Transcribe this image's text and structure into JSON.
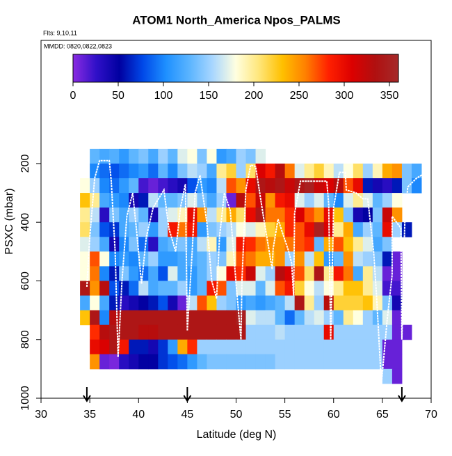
{
  "chart_data": {
    "type": "heatmap",
    "title": "ATOM1 North_America Npos_PALMS",
    "subtitle": "Flts: 9,10,11",
    "annotation": "MMDD: 0820,0822,0823",
    "xlabel": "Latitude (deg N)",
    "ylabel": "PSXC (mbar)",
    "xlim": [
      30,
      70
    ],
    "xticks": [
      30,
      35,
      40,
      45,
      50,
      55,
      60,
      65,
      70
    ],
    "ylim": [
      1000,
      -220
    ],
    "yticks": [
      200,
      400,
      600,
      800,
      1000
    ],
    "clim": [
      0,
      360
    ],
    "colorbar_ticks": [
      0,
      50,
      100,
      150,
      200,
      250,
      300,
      350
    ],
    "colors": [
      "#8a2be2",
      "#3010c8",
      "#0000a0",
      "#0048e8",
      "#1e90ff",
      "#5ab4ff",
      "#a8d6ff",
      "#ffffe0",
      "#ffe67a",
      "#ffc000",
      "#ff8000",
      "#ff2000",
      "#dc0000",
      "#b01010",
      "#a52a2a"
    ],
    "xbins": [
      34,
      35,
      36,
      37,
      38,
      39,
      40,
      41,
      42,
      43,
      44,
      45,
      46,
      47,
      48,
      49,
      50,
      51,
      52,
      53,
      54,
      55,
      56,
      57,
      58,
      59,
      60,
      61,
      62,
      63,
      64,
      65,
      66,
      67,
      68,
      69
    ],
    "ybins": [
      150,
      200,
      250,
      300,
      350,
      400,
      450,
      500,
      550,
      600,
      650,
      700,
      750,
      800,
      850,
      900,
      950
    ],
    "values": [
      [
        null,
        130,
        120,
        125,
        110,
        130,
        140,
        120,
        150,
        130,
        170,
        180,
        140,
        180,
        110,
        120,
        150,
        140,
        170,
        null,
        null,
        null,
        null,
        null,
        null,
        null,
        null,
        null,
        null,
        null,
        null,
        null,
        null,
        null,
        null
      ],
      [
        null,
        100,
        90,
        80,
        90,
        100,
        110,
        90,
        130,
        100,
        140,
        160,
        150,
        120,
        200,
        220,
        150,
        210,
        310,
        290,
        330,
        260,
        170,
        200,
        220,
        190,
        160,
        180,
        210,
        150,
        190,
        240,
        250,
        140,
        120
      ],
      [
        180,
        150,
        100,
        90,
        110,
        130,
        20,
        10,
        20,
        30,
        40,
        80,
        110,
        100,
        160,
        270,
        250,
        300,
        340,
        330,
        340,
        320,
        340,
        350,
        320,
        310,
        330,
        270,
        300,
        60,
        40,
        30,
        60,
        140,
        100
      ],
      [
        230,
        200,
        120,
        110,
        100,
        40,
        60,
        160,
        130,
        130,
        140,
        170,
        140,
        120,
        150,
        10,
        330,
        270,
        320,
        250,
        290,
        300,
        170,
        150,
        170,
        130,
        100,
        170,
        200,
        170,
        130,
        150,
        180,
        null,
        null
      ],
      [
        200,
        160,
        30,
        140,
        120,
        150,
        130,
        40,
        150,
        170,
        190,
        300,
        250,
        160,
        200,
        240,
        210,
        300,
        340,
        260,
        260,
        280,
        310,
        270,
        250,
        300,
        230,
        140,
        40,
        50,
        140,
        320,
        250,
        null,
        null
      ],
      [
        210,
        140,
        80,
        70,
        120,
        130,
        150,
        110,
        150,
        290,
        260,
        290,
        110,
        140,
        150,
        160,
        180,
        170,
        190,
        220,
        240,
        280,
        270,
        300,
        350,
        310,
        200,
        240,
        120,
        150,
        130,
        300,
        150,
        60,
        null
      ],
      [
        170,
        150,
        120,
        40,
        100,
        140,
        90,
        30,
        120,
        130,
        140,
        120,
        160,
        190,
        110,
        170,
        290,
        280,
        260,
        250,
        250,
        260,
        270,
        280,
        130,
        240,
        270,
        230,
        200,
        170,
        120,
        140,
        null,
        null,
        null
      ],
      [
        180,
        270,
        180,
        100,
        110,
        100,
        130,
        150,
        110,
        110,
        120,
        120,
        130,
        150,
        140,
        190,
        270,
        260,
        240,
        240,
        250,
        150,
        250,
        160,
        230,
        110,
        130,
        250,
        160,
        150,
        140,
        60,
        10,
        null,
        null
      ],
      [
        180,
        260,
        100,
        60,
        140,
        110,
        90,
        120,
        80,
        170,
        120,
        110,
        130,
        150,
        180,
        300,
        280,
        320,
        170,
        150,
        330,
        310,
        270,
        210,
        340,
        200,
        290,
        260,
        120,
        200,
        160,
        10,
        10,
        null,
        null
      ],
      [
        340,
        250,
        330,
        80,
        60,
        90,
        160,
        120,
        130,
        130,
        150,
        110,
        130,
        290,
        270,
        140,
        170,
        170,
        130,
        170,
        270,
        290,
        220,
        180,
        160,
        180,
        200,
        230,
        230,
        200,
        170,
        20,
        20,
        null,
        null
      ],
      [
        120,
        180,
        120,
        60,
        30,
        40,
        50,
        60,
        80,
        40,
        10,
        160,
        270,
        230,
        150,
        140,
        110,
        120,
        110,
        120,
        130,
        160,
        340,
        200,
        150,
        330,
        220,
        220,
        220,
        230,
        190,
        140,
        40,
        null,
        null
      ],
      [
        230,
        340,
        100,
        330,
        340,
        340,
        340,
        340,
        340,
        340,
        340,
        340,
        340,
        340,
        340,
        340,
        350,
        170,
        160,
        160,
        130,
        90,
        130,
        160,
        170,
        150,
        130,
        200,
        180,
        150,
        130,
        170,
        10,
        null,
        null
      ],
      [
        null,
        280,
        330,
        340,
        340,
        340,
        330,
        330,
        340,
        340,
        340,
        340,
        340,
        340,
        340,
        340,
        340,
        150,
        150,
        150,
        160,
        150,
        150,
        150,
        150,
        300,
        150,
        150,
        150,
        150,
        150,
        150,
        10,
        10,
        null
      ],
      [
        null,
        300,
        310,
        340,
        290,
        60,
        60,
        40,
        70,
        110,
        240,
        280,
        150,
        150,
        150,
        150,
        150,
        150,
        150,
        150,
        150,
        150,
        150,
        150,
        150,
        150,
        150,
        150,
        150,
        150,
        150,
        10,
        10,
        null,
        null
      ],
      [
        null,
        250,
        10,
        5,
        30,
        40,
        50,
        50,
        70,
        80,
        90,
        110,
        130,
        140,
        140,
        140,
        140,
        140,
        140,
        140,
        150,
        150,
        150,
        150,
        150,
        150,
        150,
        150,
        150,
        150,
        150,
        10,
        10,
        null,
        null
      ],
      [
        null,
        null,
        null,
        null,
        null,
        null,
        null,
        null,
        null,
        null,
        null,
        null,
        null,
        null,
        null,
        null,
        null,
        null,
        null,
        null,
        null,
        null,
        null,
        null,
        null,
        null,
        null,
        null,
        null,
        null,
        null,
        150,
        10,
        null,
        null
      ]
    ],
    "track": {
      "x": [
        34.7,
        35,
        35.5,
        36,
        37,
        37.2,
        37.6,
        37.9,
        38.3,
        38.8,
        39.4,
        39.8,
        40.3,
        40.8,
        41.5,
        42.6,
        43.1,
        43.8,
        44.3,
        44.8,
        45,
        45.5,
        45.8,
        46.3,
        47,
        47.5,
        48,
        48.3,
        48.8,
        49.4,
        50,
        50.5,
        50.6,
        51,
        51.5,
        52,
        52.8,
        53.7,
        53.8,
        54.3,
        55.4,
        55.7,
        55.9,
        56,
        56.6,
        59.3,
        59.5,
        59.7,
        59.9,
        60,
        60.6,
        61.2,
        61.3,
        62.3,
        63,
        63.5,
        64.1,
        64.4,
        64.9,
        65.5,
        66,
        66,
        66.9,
        67,
        67.3,
        67.6,
        68.2,
        68.5,
        69,
        70
      ],
      "y": [
        620,
        450,
        250,
        190,
        190,
        260,
        500,
        860,
        600,
        380,
        300,
        430,
        610,
        450,
        350,
        290,
        420,
        500,
        350,
        270,
        770,
        500,
        300,
        240,
        400,
        600,
        660,
        450,
        300,
        360,
        610,
        800,
        600,
        290,
        205,
        210,
        380,
        560,
        490,
        390,
        500,
        540,
        650,
        370,
        260,
        260,
        340,
        800,
        500,
        350,
        230,
        230,
        290,
        300,
        320,
        320,
        500,
        650,
        950,
        730,
        580,
        380,
        420,
        800,
        400,
        280,
        260,
        250,
        240,
        230
      ]
    },
    "arrows": [
      34.7,
      45,
      67
    ]
  }
}
